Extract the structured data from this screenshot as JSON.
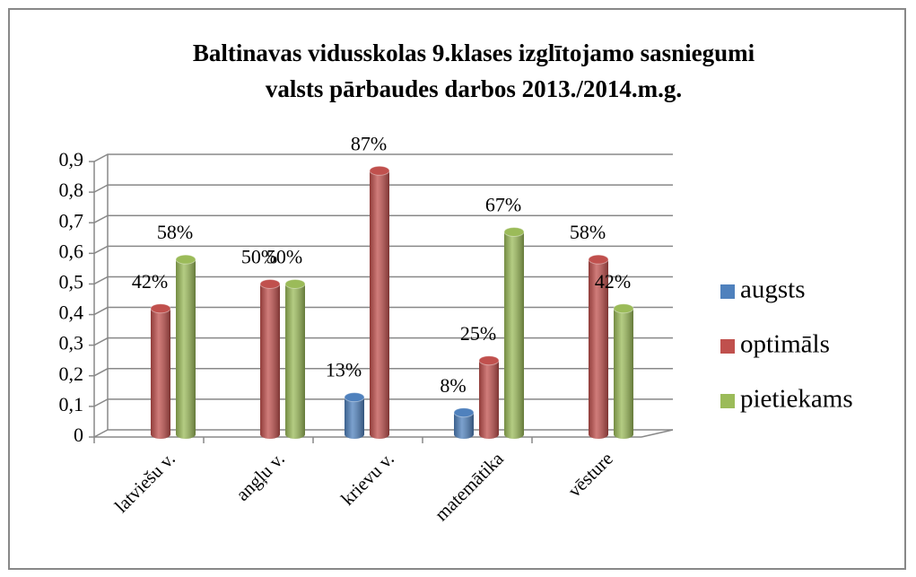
{
  "chart_data": {
    "type": "bar",
    "title": [
      "Baltinavas vidusskolas 9.klases izglītojamo sasniegumi",
      "valsts pārbaudes darbos 2013./2014.m.g."
    ],
    "categories": [
      "latviešu v.",
      "angļu v.",
      "krievu v.",
      "matemātika",
      "vēsture"
    ],
    "series": [
      {
        "name": "augsts",
        "color": "#4f81bd",
        "values": [
          null,
          null,
          0.13,
          0.08,
          null
        ],
        "value_labels": [
          null,
          null,
          "13%",
          "8%",
          null
        ]
      },
      {
        "name": "optimāls",
        "color": "#c0504d",
        "values": [
          0.42,
          0.5,
          0.87,
          0.25,
          0.58
        ],
        "value_labels": [
          "42%",
          "50%",
          "87%",
          "25%",
          "58%"
        ]
      },
      {
        "name": "pietiekams",
        "color": "#9bbb59",
        "values": [
          0.58,
          0.5,
          null,
          0.67,
          0.42
        ],
        "value_labels": [
          "58%",
          "50%",
          null,
          "67%",
          "42%"
        ]
      }
    ],
    "ylim": [
      0,
      0.9
    ],
    "yticks": [
      0,
      {
        "value": 0.1,
        "label": "0,1"
      },
      {
        "value": 0.2,
        "label": "0,2"
      },
      {
        "value": 0.3,
        "label": "0,3"
      },
      {
        "value": 0.4,
        "label": "0,4"
      },
      {
        "value": 0.5,
        "label": "0,5"
      },
      {
        "value": 0.6,
        "label": "0,6"
      },
      {
        "value": 0.7,
        "label": "0,7"
      },
      {
        "value": 0.8,
        "label": "0,8"
      },
      {
        "value": 0.9,
        "label": "0,9"
      }
    ],
    "grid": true,
    "legend": "right"
  }
}
